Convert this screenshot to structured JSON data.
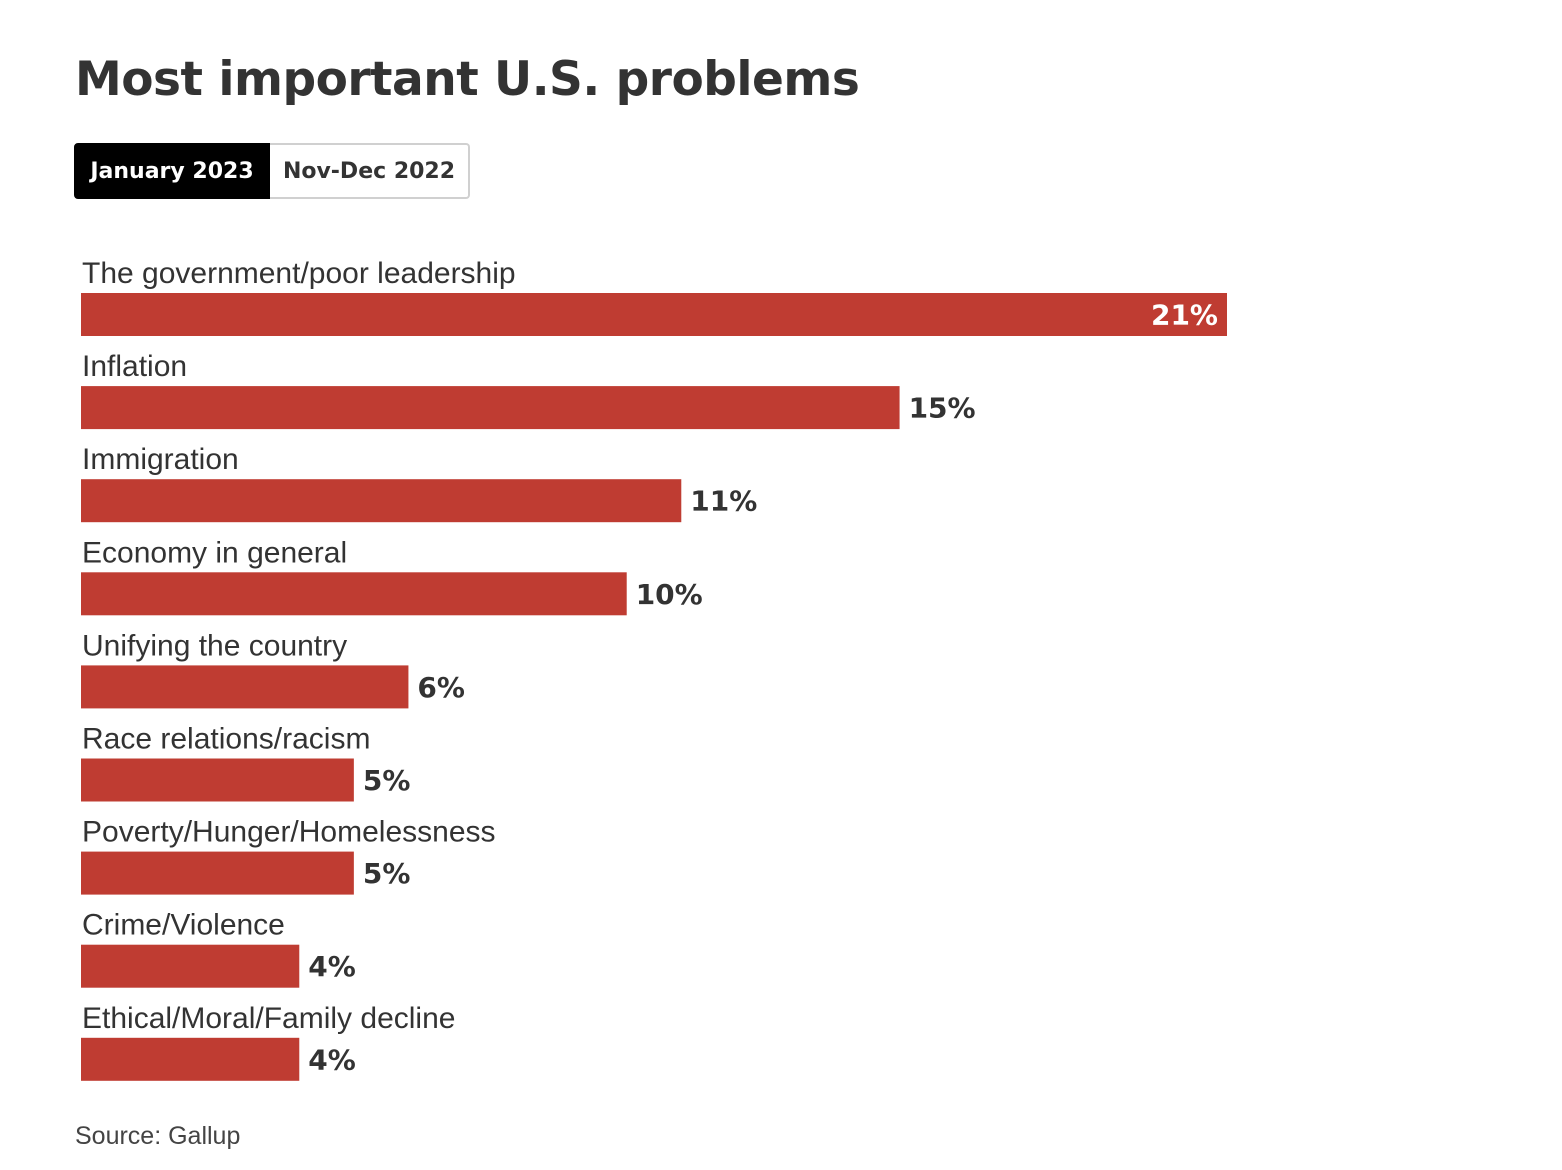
{
  "title": "Most important U.S. problems",
  "tabs": [
    {
      "label": "January 2023",
      "active": true
    },
    {
      "label": "Nov-Dec 2022",
      "active": false
    }
  ],
  "source": "Source: Gallup",
  "colors": {
    "bar": "#bf3c32",
    "text": "#333333",
    "active_tab_bg": "#000000",
    "label_inside": "#ffffff"
  },
  "chart_data": {
    "type": "bar",
    "orientation": "horizontal",
    "title": "Most important U.S. problems",
    "categories": [
      "The government/poor leadership",
      "Inflation",
      "Immigration",
      "Economy in general",
      "Unifying the country",
      "Race relations/racism",
      "Poverty/Hunger/Homelessness",
      "Crime/Violence",
      "Ethical/Moral/Family decline"
    ],
    "values": [
      21,
      15,
      11,
      10,
      6,
      5,
      5,
      4,
      4
    ],
    "value_labels": [
      "21%",
      "15%",
      "11%",
      "10%",
      "6%",
      "5%",
      "5%",
      "4%",
      "4%"
    ],
    "xlim": [
      0,
      21
    ],
    "grid": false,
    "legend": "none"
  }
}
